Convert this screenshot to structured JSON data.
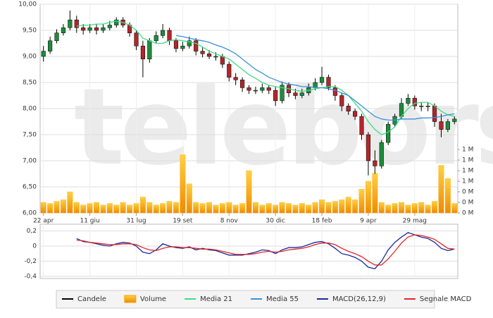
{
  "chart_data": {
    "type": "candlestick",
    "watermark": "teleborsa",
    "name": "Candele",
    "categories": [
      "22 apr",
      null,
      null,
      null,
      null,
      null,
      null,
      "11 giu",
      null,
      null,
      null,
      null,
      null,
      null,
      "31 lug",
      null,
      null,
      null,
      null,
      null,
      null,
      "19 set",
      null,
      null,
      null,
      null,
      null,
      null,
      "8 nov",
      null,
      null,
      null,
      null,
      null,
      null,
      "30 dic",
      null,
      null,
      null,
      null,
      null,
      null,
      "18 feb",
      null,
      null,
      null,
      null,
      null,
      null,
      "9 apr",
      null,
      null,
      null,
      null,
      null,
      null,
      "29 mag",
      null,
      null,
      null,
      null,
      null,
      null
    ],
    "open": [
      9.0,
      9.1,
      9.3,
      9.45,
      9.55,
      9.7,
      9.55,
      9.5,
      9.55,
      9.5,
      9.55,
      9.6,
      9.7,
      9.6,
      9.45,
      9.2,
      8.95,
      9.3,
      9.4,
      9.5,
      9.3,
      9.15,
      9.2,
      9.3,
      9.1,
      9.05,
      9.0,
      9.0,
      8.85,
      8.6,
      8.55,
      8.4,
      8.35,
      8.35,
      8.4,
      8.35,
      8.15,
      8.45,
      8.3,
      8.25,
      8.3,
      8.4,
      8.5,
      8.6,
      8.4,
      8.25,
      8.05,
      7.95,
      7.85,
      7.5,
      7.0,
      6.9,
      7.35,
      7.7,
      7.85,
      8.1,
      8.2,
      8.05,
      8.05,
      8.05,
      7.75,
      7.6,
      7.75
    ],
    "high": [
      9.2,
      9.38,
      9.52,
      9.62,
      9.88,
      9.78,
      9.62,
      9.62,
      9.62,
      9.62,
      9.68,
      9.75,
      9.75,
      9.65,
      9.5,
      9.3,
      9.35,
      9.48,
      9.62,
      9.55,
      9.35,
      9.28,
      9.38,
      9.35,
      9.18,
      9.12,
      9.08,
      9.05,
      8.9,
      8.68,
      8.6,
      8.45,
      8.42,
      8.48,
      8.45,
      8.42,
      8.52,
      8.5,
      8.38,
      8.38,
      8.48,
      8.58,
      8.8,
      8.65,
      8.45,
      8.3,
      8.1,
      8.0,
      7.9,
      7.55,
      7.2,
      7.4,
      7.75,
      7.9,
      8.2,
      8.28,
      8.25,
      8.12,
      8.12,
      8.1,
      7.9,
      7.8,
      7.85
    ],
    "low": [
      8.9,
      9.05,
      9.25,
      9.4,
      9.5,
      9.45,
      9.42,
      9.45,
      9.42,
      9.45,
      9.5,
      9.55,
      9.55,
      9.38,
      9.12,
      8.6,
      8.88,
      9.25,
      9.35,
      9.22,
      9.08,
      9.1,
      9.15,
      9.02,
      8.98,
      8.95,
      8.92,
      8.78,
      8.52,
      8.45,
      8.32,
      8.28,
      8.28,
      8.3,
      8.28,
      8.05,
      8.1,
      8.22,
      8.18,
      8.2,
      8.25,
      8.35,
      8.45,
      8.35,
      8.15,
      7.95,
      7.88,
      7.78,
      7.4,
      6.72,
      6.75,
      6.85,
      7.3,
      7.65,
      7.8,
      8.05,
      7.98,
      7.95,
      7.95,
      7.65,
      7.45,
      7.55,
      7.7
    ],
    "close": [
      9.1,
      9.3,
      9.45,
      9.55,
      9.7,
      9.55,
      9.5,
      9.55,
      9.5,
      9.55,
      9.6,
      9.7,
      9.6,
      9.45,
      9.2,
      8.95,
      9.3,
      9.4,
      9.5,
      9.3,
      9.15,
      9.2,
      9.3,
      9.1,
      9.05,
      9.0,
      9.0,
      8.85,
      8.6,
      8.55,
      8.4,
      8.35,
      8.35,
      8.4,
      8.35,
      8.15,
      8.45,
      8.3,
      8.25,
      8.3,
      8.4,
      8.5,
      8.6,
      8.4,
      8.25,
      8.05,
      7.95,
      7.85,
      7.5,
      7.0,
      6.9,
      7.35,
      7.7,
      7.85,
      8.1,
      8.2,
      8.05,
      8.05,
      8.05,
      7.75,
      7.6,
      7.75,
      7.8
    ],
    "up_color": "#1e8c3a",
    "down_color": "#b3262b",
    "color": "#000000",
    "ylim": [
      6,
      10
    ],
    "yticks": [
      {
        "value": 6,
        "label": "6,00"
      },
      {
        "value": 6.5,
        "label": "6,50"
      },
      {
        "value": 7,
        "label": "7,00"
      },
      {
        "value": 7.5,
        "label": "7,50"
      },
      {
        "value": 8,
        "label": "8,00"
      },
      {
        "value": 8.5,
        "label": "8,50"
      },
      {
        "value": 9,
        "label": "9,00"
      },
      {
        "value": 9.5,
        "label": "9,50"
      },
      {
        "value": 10,
        "label": "10,00"
      }
    ],
    "grid": true,
    "volume": {
      "name": "Volume",
      "color": "#f5a200",
      "values": [
        0.2,
        0.18,
        0.22,
        0.25,
        0.4,
        0.2,
        0.15,
        0.18,
        0.2,
        0.15,
        0.18,
        0.15,
        0.2,
        0.15,
        0.18,
        0.3,
        0.2,
        0.15,
        0.18,
        0.22,
        0.2,
        1.1,
        0.55,
        0.2,
        0.18,
        0.2,
        0.15,
        0.18,
        0.2,
        0.15,
        0.18,
        0.8,
        0.2,
        0.15,
        0.18,
        0.15,
        0.2,
        0.18,
        0.15,
        0.18,
        0.15,
        0.2,
        0.25,
        0.2,
        0.22,
        0.25,
        0.3,
        0.25,
        0.45,
        0.6,
        0.75,
        0.2,
        0.15,
        0.18,
        0.2,
        0.15,
        0.18,
        0.2,
        0.15,
        0.22,
        0.9,
        0.65,
        0.18
      ],
      "y2lim": [
        0,
        1.2
      ],
      "y2ticks": [
        {
          "value": 0,
          "label": "0 M"
        },
        {
          "value": 0.2,
          "label": "0 M"
        },
        {
          "value": 0.4,
          "label": "0 M"
        },
        {
          "value": 0.6,
          "label": "1 M"
        },
        {
          "value": 0.8,
          "label": "1 M"
        },
        {
          "value": 1.0,
          "label": "1 M"
        },
        {
          "value": 1.2,
          "label": "1 M"
        }
      ]
    },
    "series": [
      {
        "name": "Media 21",
        "color": "#3ddc84",
        "values": [
          null,
          null,
          null,
          null,
          null,
          9.58,
          9.6,
          9.6,
          9.62,
          9.62,
          9.65,
          9.68,
          9.65,
          9.6,
          9.5,
          9.35,
          9.3,
          9.25,
          9.25,
          9.3,
          9.32,
          9.3,
          9.28,
          9.25,
          9.18,
          9.1,
          9.05,
          9.0,
          8.95,
          8.85,
          8.75,
          8.65,
          8.58,
          8.5,
          8.45,
          8.42,
          8.4,
          8.38,
          8.35,
          8.33,
          8.35,
          8.38,
          8.4,
          8.42,
          8.42,
          8.35,
          8.25,
          8.1,
          7.95,
          7.75,
          7.6,
          7.5,
          7.55,
          7.65,
          7.85,
          8.0,
          8.1,
          8.12,
          8.12,
          8.05,
          7.95,
          7.88,
          7.85
        ]
      },
      {
        "name": "Media 55",
        "color": "#3b8fd9",
        "values": [
          null,
          null,
          null,
          null,
          null,
          null,
          null,
          null,
          null,
          null,
          null,
          null,
          null,
          null,
          null,
          null,
          null,
          null,
          null,
          null,
          9.4,
          9.38,
          9.35,
          9.32,
          9.3,
          9.27,
          9.22,
          9.18,
          9.12,
          9.05,
          8.95,
          8.85,
          8.75,
          8.68,
          8.6,
          8.55,
          8.5,
          8.47,
          8.45,
          8.42,
          8.42,
          8.4,
          8.4,
          8.38,
          8.35,
          8.3,
          8.25,
          8.15,
          8.05,
          7.95,
          7.85,
          7.8,
          7.78,
          7.78,
          7.8,
          7.8,
          7.8,
          7.82,
          7.82,
          7.83,
          7.85,
          7.88,
          7.9
        ]
      }
    ],
    "macd": {
      "ylim": [
        -0.43,
        0.29
      ],
      "yticks": [
        {
          "value": -0.4,
          "label": "-0,4"
        },
        {
          "value": -0.2,
          "label": "-0,2"
        },
        {
          "value": 0,
          "label": "0"
        },
        {
          "value": 0.2,
          "label": "0,2"
        }
      ],
      "series": [
        {
          "name": "MACD(26,12,9)",
          "color": "#1a2a9a",
          "values": [
            null,
            null,
            null,
            null,
            null,
            0.1,
            0.06,
            0.05,
            0.03,
            0.01,
            0.0,
            0.03,
            0.05,
            0.04,
            0.0,
            -0.08,
            -0.1,
            -0.05,
            0.03,
            0.0,
            -0.02,
            -0.03,
            -0.01,
            -0.05,
            -0.03,
            -0.05,
            -0.06,
            -0.09,
            -0.12,
            -0.12,
            -0.12,
            -0.1,
            -0.08,
            -0.05,
            -0.06,
            -0.1,
            -0.05,
            -0.02,
            -0.02,
            -0.01,
            0.02,
            0.05,
            0.06,
            0.03,
            -0.03,
            -0.1,
            -0.12,
            -0.15,
            -0.2,
            -0.28,
            -0.3,
            -0.2,
            -0.05,
            0.05,
            0.12,
            0.18,
            0.15,
            0.12,
            0.1,
            0.05,
            -0.03,
            -0.06,
            -0.04
          ]
        },
        {
          "name": "Segnale MACD",
          "color": "#e0262b",
          "values": [
            null,
            null,
            null,
            null,
            null,
            0.08,
            0.07,
            0.05,
            0.04,
            0.03,
            0.02,
            0.02,
            0.03,
            0.03,
            0.02,
            -0.02,
            -0.05,
            -0.06,
            -0.03,
            -0.01,
            -0.01,
            -0.02,
            -0.02,
            -0.03,
            -0.04,
            -0.04,
            -0.05,
            -0.07,
            -0.09,
            -0.11,
            -0.11,
            -0.11,
            -0.1,
            -0.08,
            -0.07,
            -0.08,
            -0.07,
            -0.05,
            -0.04,
            -0.03,
            -0.01,
            0.02,
            0.04,
            0.04,
            0.02,
            -0.03,
            -0.07,
            -0.1,
            -0.14,
            -0.2,
            -0.25,
            -0.25,
            -0.17,
            -0.07,
            0.04,
            0.12,
            0.15,
            0.14,
            0.12,
            0.09,
            0.03,
            -0.03,
            -0.04
          ]
        }
      ]
    }
  }
}
